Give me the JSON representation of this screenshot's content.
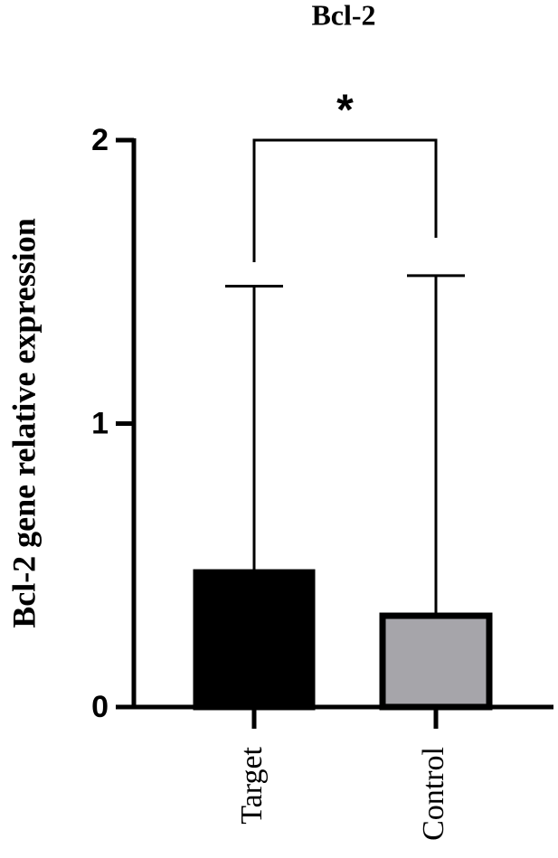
{
  "chart_data": {
    "type": "bar",
    "title": "Bcl-2",
    "y_label": "Bcl-2 gene relative expression",
    "categories": [
      "Target",
      "Control"
    ],
    "values": [
      0.475,
      0.322
    ],
    "errors": [
      1.01,
      1.2
    ],
    "colors": [
      "#000000",
      "#a6a5aa"
    ],
    "ylim": [
      0,
      2
    ],
    "yticks": [
      0,
      1,
      2
    ],
    "annotation": "*"
  }
}
